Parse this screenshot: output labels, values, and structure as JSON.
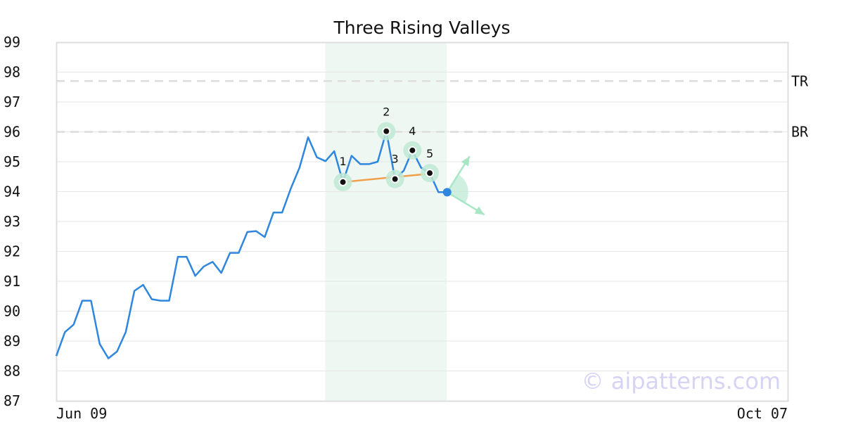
{
  "chart_data": {
    "type": "line",
    "title": "Three Rising Valleys",
    "xlabel": "",
    "ylabel": "",
    "x_tick_labels": [
      "Jun 09",
      "Oct 07"
    ],
    "y_ticks": [
      87,
      88,
      89,
      90,
      91,
      92,
      93,
      94,
      95,
      96,
      97,
      98,
      99
    ],
    "ylim": [
      87,
      99
    ],
    "grid": "horizontal",
    "series": [
      {
        "color": "#2e86de",
        "values": [
          88.5,
          89.3,
          89.55,
          90.35,
          90.35,
          88.9,
          88.42,
          88.65,
          89.3,
          90.68,
          90.88,
          90.4,
          90.35,
          90.35,
          91.82,
          91.82,
          91.18,
          91.5,
          91.65,
          91.28,
          91.95,
          91.95,
          92.65,
          92.68,
          92.48,
          93.3,
          93.3,
          94.1,
          94.8,
          95.82,
          95.15,
          95.02,
          95.35,
          94.32,
          95.2,
          94.92,
          94.92,
          95.0,
          96.02,
          94.42,
          94.7,
          95.38,
          94.8,
          94.62,
          93.98,
          93.98
        ]
      }
    ],
    "pattern": {
      "points": [
        {
          "label": "1",
          "index": 33,
          "value": 94.32
        },
        {
          "label": "2",
          "index": 38,
          "value": 96.02
        },
        {
          "label": "3",
          "index": 39,
          "value": 94.42
        },
        {
          "label": "4",
          "index": 41,
          "value": 95.38
        },
        {
          "label": "5",
          "index": 43,
          "value": 94.62
        }
      ],
      "trendline": {
        "from_index": 33,
        "from_value": 94.32,
        "to_index": 43,
        "to_value": 94.6,
        "color": "#f0a04b"
      },
      "highlight_index_range": [
        31,
        45
      ],
      "last_point": {
        "index": 45,
        "value": 93.98,
        "color": "#2e86de"
      }
    },
    "reference_lines": [
      {
        "label": "TR",
        "value": 97.7
      },
      {
        "label": "BR",
        "value": 96.0
      }
    ],
    "colors": {
      "line": "#2e86de",
      "highlight": "#eef7f2",
      "marker_ring": "#bfe9d5",
      "arrow": "#a8e6c6",
      "trendline": "#f0a04b",
      "grid": "#e6e6e6",
      "reference": "#dddddd"
    }
  },
  "watermark": "© aipatterns.com"
}
